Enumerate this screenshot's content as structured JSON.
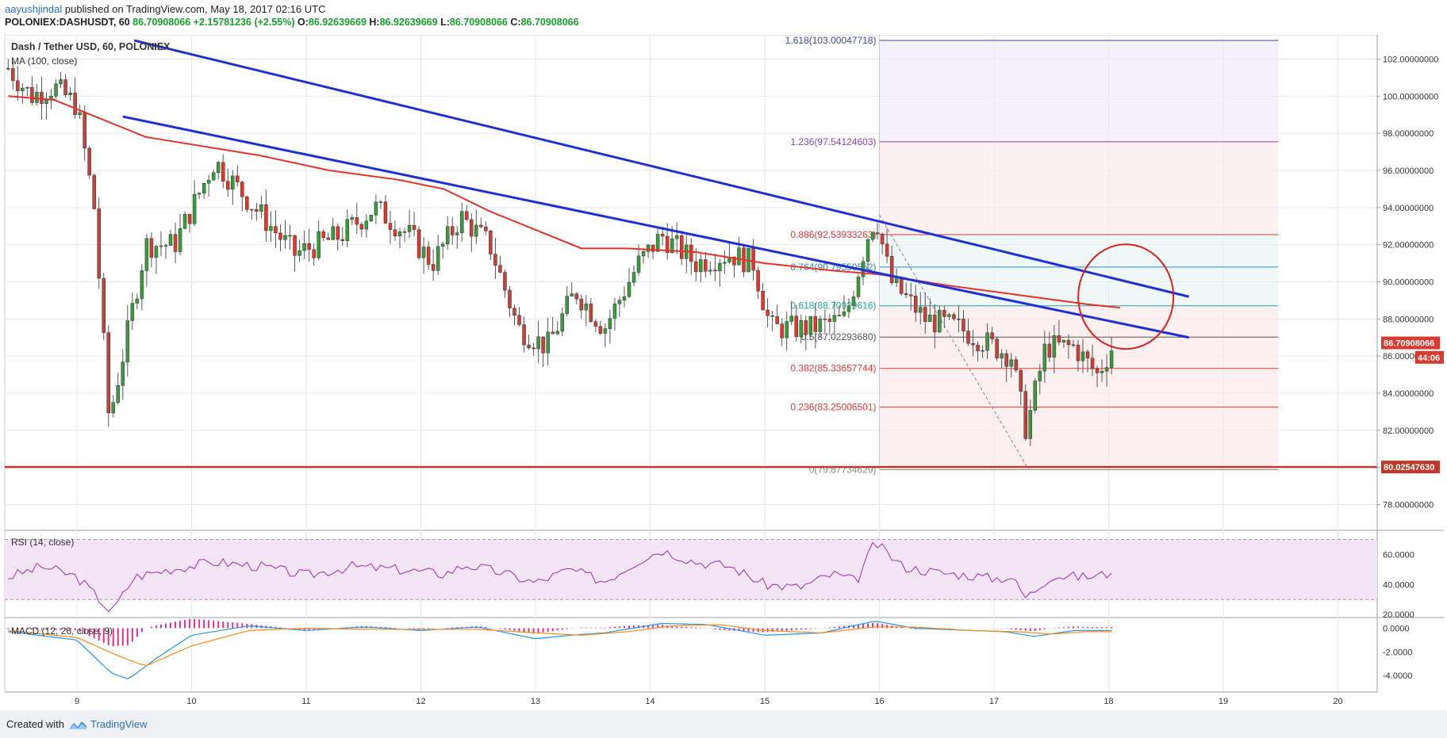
{
  "header": {
    "author": "aayushjindal",
    "published_text": "published on TradingView.com, May 18, 2017 02:16 UTC",
    "symbol": "POLONIEX:DASHUSDT, 60",
    "last": "86.70908066",
    "change": "+2.15781236 (+2.55%)",
    "open_label": "O:",
    "open": "86.92639669",
    "high_label": "H:",
    "high": "86.92639669",
    "low_label": "L:",
    "low": "86.70908066",
    "close_label": "C:",
    "close": "86.70908066"
  },
  "legend": {
    "title": "Dash / Tether USD, 60, POLONIEX",
    "ma": "MA (100, close)"
  },
  "footer": {
    "created": "Created with",
    "brand": "TradingView"
  },
  "colors": {
    "up": "#3a9b3a",
    "down": "#d93a2f",
    "ma": "#e8302a",
    "trend": "#1f2fd6",
    "rsi": "#9b2fb0",
    "macd": "#2196f3",
    "signal": "#ff8a1a",
    "hist": "#e0318a"
  },
  "chart_data": [
    {
      "type": "candlestick",
      "title": "Dash / Tether USD, 60, POLONIEX",
      "x_ticks": [
        "9",
        "10",
        "11",
        "12",
        "13",
        "14",
        "15",
        "16",
        "17",
        "18",
        "19",
        "20"
      ],
      "ylim": [
        76.7,
        103.3
      ],
      "y_ticks": [
        "78.00000000",
        "80.00000000",
        "82.00000000",
        "84.00000000",
        "86.00000000",
        "88.00000000",
        "90.00000000",
        "92.00000000",
        "94.00000000",
        "96.00000000",
        "98.00000000",
        "100.00000000",
        "102.00000000"
      ],
      "y_tick_values": [
        78,
        80,
        82,
        84,
        86,
        88,
        90,
        92,
        94,
        96,
        98,
        100,
        102
      ],
      "price_tags": [
        {
          "label": "86.70908066",
          "value": 86.709
        },
        {
          "label": "44:06",
          "value": 85.93
        },
        {
          "label": "80.02547630",
          "value": 80.025
        }
      ],
      "candle_anchors": [
        {
          "t": 8.4,
          "p": 101.5
        },
        {
          "t": 8.6,
          "p": 100.0
        },
        {
          "t": 8.8,
          "p": 100.5
        },
        {
          "t": 9.0,
          "p": 99.5
        },
        {
          "t": 9.15,
          "p": 94.0
        },
        {
          "t": 9.28,
          "p": 82.5
        },
        {
          "t": 9.4,
          "p": 86.0
        },
        {
          "t": 9.6,
          "p": 92.0
        },
        {
          "t": 9.85,
          "p": 92.0
        },
        {
          "t": 10.2,
          "p": 96.5
        },
        {
          "t": 10.55,
          "p": 94.0
        },
        {
          "t": 10.9,
          "p": 91.5
        },
        {
          "t": 11.3,
          "p": 92.5
        },
        {
          "t": 11.6,
          "p": 94.0
        },
        {
          "t": 11.9,
          "p": 92.5
        },
        {
          "t": 12.1,
          "p": 91.0
        },
        {
          "t": 12.35,
          "p": 93.5
        },
        {
          "t": 12.6,
          "p": 92.0
        },
        {
          "t": 12.85,
          "p": 87.5
        },
        {
          "t": 13.1,
          "p": 86.5
        },
        {
          "t": 13.35,
          "p": 89.5
        },
        {
          "t": 13.6,
          "p": 87.5
        },
        {
          "t": 13.9,
          "p": 91.0
        },
        {
          "t": 14.1,
          "p": 92.5
        },
        {
          "t": 14.4,
          "p": 91.0
        },
        {
          "t": 14.7,
          "p": 91.5
        },
        {
          "t": 14.9,
          "p": 91.0
        },
        {
          "t": 15.05,
          "p": 87.5
        },
        {
          "t": 15.4,
          "p": 87.5
        },
        {
          "t": 15.7,
          "p": 88.0
        },
        {
          "t": 15.9,
          "p": 92.5
        },
        {
          "t": 15.97,
          "p": 93.5
        },
        {
          "t": 16.1,
          "p": 90.0
        },
        {
          "t": 16.4,
          "p": 88.0
        },
        {
          "t": 16.7,
          "p": 87.5
        },
        {
          "t": 17.0,
          "p": 86.5
        },
        {
          "t": 17.15,
          "p": 86.0
        },
        {
          "t": 17.28,
          "p": 82.0
        },
        {
          "t": 17.45,
          "p": 86.5
        },
        {
          "t": 17.7,
          "p": 86.5
        },
        {
          "t": 17.9,
          "p": 85.0
        },
        {
          "t": 18.05,
          "p": 86.7
        }
      ],
      "ma_path": [
        {
          "t": 8.4,
          "p": 100.0
        },
        {
          "t": 8.8,
          "p": 99.8
        },
        {
          "t": 9.2,
          "p": 98.8
        },
        {
          "t": 9.6,
          "p": 97.8
        },
        {
          "t": 10.0,
          "p": 97.4
        },
        {
          "t": 10.6,
          "p": 96.8
        },
        {
          "t": 11.2,
          "p": 96.0
        },
        {
          "t": 11.8,
          "p": 95.5
        },
        {
          "t": 12.2,
          "p": 95.0
        },
        {
          "t": 12.6,
          "p": 93.8
        },
        {
          "t": 13.0,
          "p": 92.8
        },
        {
          "t": 13.4,
          "p": 91.8
        },
        {
          "t": 13.8,
          "p": 91.8
        },
        {
          "t": 14.4,
          "p": 91.6
        },
        {
          "t": 15.0,
          "p": 91.0
        },
        {
          "t": 15.6,
          "p": 90.6
        },
        {
          "t": 16.0,
          "p": 90.4
        },
        {
          "t": 16.6,
          "p": 89.8
        },
        {
          "t": 17.2,
          "p": 89.3
        },
        {
          "t": 17.8,
          "p": 88.8
        },
        {
          "t": 18.1,
          "p": 88.6
        }
      ],
      "trendlines": [
        {
          "t1": 9.5,
          "p1": 103.0,
          "t2": 18.7,
          "p2": 89.2
        },
        {
          "t1": 9.4,
          "p1": 98.9,
          "t2": 18.7,
          "p2": 87.0
        }
      ],
      "fib_levels": [
        {
          "ratio": "0",
          "label": "0(79.87734629)",
          "value": 79.877,
          "color": "#888888"
        },
        {
          "ratio": "0.236",
          "label": "0.236(83.25006501)",
          "value": 83.25,
          "color": "#e53935"
        },
        {
          "ratio": "0.382",
          "label": "0.382(85.33657744)",
          "value": 85.337,
          "color": "#e53935"
        },
        {
          "ratio": "0.5",
          "label": "0.5(87.02293680)",
          "value": 87.023,
          "color": "#555555"
        },
        {
          "ratio": "0.618",
          "label": "0.618(88.70929616)",
          "value": 88.709,
          "color": "#26a69a"
        },
        {
          "ratio": "0.764",
          "label": "0.764(90.79550552)",
          "value": 90.796,
          "color": "#2e86c1"
        },
        {
          "ratio": "0.886",
          "label": "0.886(92.53933263)",
          "value": 92.539,
          "color": "#e53935"
        },
        {
          "ratio": "1.236",
          "label": "1.236(97.54124603)",
          "value": 97.541,
          "color": "#8e44ad"
        },
        {
          "ratio": "1.618",
          "label": "1.618(103.00047718)",
          "value": 103.0,
          "color": "#3949ab"
        }
      ],
      "support_line": 80.025
    },
    {
      "type": "line",
      "title": "RSI (14, close)",
      "ylim": [
        18,
        75
      ],
      "y_ticks": [
        "20.0000",
        "40.0000",
        "60.0000"
      ],
      "y_tick_values": [
        20,
        40,
        60
      ],
      "band": [
        30,
        70
      ],
      "series": [
        {
          "points": [
            {
              "t": 8.4,
              "v": 45
            },
            {
              "t": 8.7,
              "v": 52
            },
            {
              "t": 9.0,
              "v": 45
            },
            {
              "t": 9.2,
              "v": 30
            },
            {
              "t": 9.3,
              "v": 21
            },
            {
              "t": 9.5,
              "v": 45
            },
            {
              "t": 9.8,
              "v": 50
            },
            {
              "t": 10.2,
              "v": 55
            },
            {
              "t": 10.6,
              "v": 52
            },
            {
              "t": 11.0,
              "v": 46
            },
            {
              "t": 11.4,
              "v": 52
            },
            {
              "t": 11.8,
              "v": 50
            },
            {
              "t": 12.2,
              "v": 47
            },
            {
              "t": 12.4,
              "v": 53
            },
            {
              "t": 12.7,
              "v": 48
            },
            {
              "t": 13.0,
              "v": 41
            },
            {
              "t": 13.3,
              "v": 50
            },
            {
              "t": 13.6,
              "v": 42
            },
            {
              "t": 13.9,
              "v": 56
            },
            {
              "t": 14.1,
              "v": 63
            },
            {
              "t": 14.4,
              "v": 55
            },
            {
              "t": 14.7,
              "v": 52
            },
            {
              "t": 15.0,
              "v": 40
            },
            {
              "t": 15.3,
              "v": 38
            },
            {
              "t": 15.6,
              "v": 47
            },
            {
              "t": 15.8,
              "v": 42
            },
            {
              "t": 15.96,
              "v": 68
            },
            {
              "t": 16.2,
              "v": 52
            },
            {
              "t": 16.5,
              "v": 48
            },
            {
              "t": 16.8,
              "v": 46
            },
            {
              "t": 17.0,
              "v": 44
            },
            {
              "t": 17.15,
              "v": 45
            },
            {
              "t": 17.28,
              "v": 31
            },
            {
              "t": 17.5,
              "v": 46
            },
            {
              "t": 17.8,
              "v": 45
            },
            {
              "t": 18.0,
              "v": 47
            },
            {
              "t": 18.05,
              "v": 54
            }
          ]
        }
      ]
    },
    {
      "type": "line",
      "title": "MACD (12, 26, close, 9)",
      "ylim": [
        -5.4,
        0.9
      ],
      "y_ticks": [
        "0.0000",
        "-2.0000",
        "-4.0000"
      ],
      "y_tick_values": [
        0,
        -2,
        -4
      ],
      "series": [
        {
          "role": "macd",
          "points": [
            {
              "t": 8.4,
              "v": -0.3
            },
            {
              "t": 9.0,
              "v": -1.0
            },
            {
              "t": 9.3,
              "v": -3.8
            },
            {
              "t": 9.45,
              "v": -4.3
            },
            {
              "t": 9.7,
              "v": -2.5
            },
            {
              "t": 10.0,
              "v": -0.6
            },
            {
              "t": 10.5,
              "v": 0.2
            },
            {
              "t": 11.0,
              "v": -0.2
            },
            {
              "t": 11.5,
              "v": 0.1
            },
            {
              "t": 12.0,
              "v": -0.2
            },
            {
              "t": 12.5,
              "v": 0.1
            },
            {
              "t": 13.0,
              "v": -0.9
            },
            {
              "t": 13.3,
              "v": -0.6
            },
            {
              "t": 13.6,
              "v": -0.4
            },
            {
              "t": 14.1,
              "v": 0.4
            },
            {
              "t": 14.5,
              "v": 0.3
            },
            {
              "t": 15.0,
              "v": -0.6
            },
            {
              "t": 15.5,
              "v": -0.4
            },
            {
              "t": 15.96,
              "v": 0.6
            },
            {
              "t": 16.3,
              "v": 0.0
            },
            {
              "t": 16.8,
              "v": -0.2
            },
            {
              "t": 17.1,
              "v": -0.3
            },
            {
              "t": 17.35,
              "v": -0.7
            },
            {
              "t": 17.7,
              "v": -0.2
            },
            {
              "t": 18.05,
              "v": -0.2
            }
          ]
        },
        {
          "role": "signal",
          "points": [
            {
              "t": 8.4,
              "v": -0.2
            },
            {
              "t": 9.0,
              "v": -0.8
            },
            {
              "t": 9.4,
              "v": -2.5
            },
            {
              "t": 9.6,
              "v": -3.2
            },
            {
              "t": 10.0,
              "v": -1.5
            },
            {
              "t": 10.5,
              "v": -0.2
            },
            {
              "t": 11.0,
              "v": 0.0
            },
            {
              "t": 11.5,
              "v": -0.1
            },
            {
              "t": 12.0,
              "v": -0.1
            },
            {
              "t": 12.5,
              "v": -0.1
            },
            {
              "t": 13.0,
              "v": -0.4
            },
            {
              "t": 13.4,
              "v": -0.6
            },
            {
              "t": 13.8,
              "v": -0.3
            },
            {
              "t": 14.2,
              "v": 0.2
            },
            {
              "t": 14.6,
              "v": 0.3
            },
            {
              "t": 15.0,
              "v": -0.2
            },
            {
              "t": 15.5,
              "v": -0.4
            },
            {
              "t": 15.96,
              "v": 0.1
            },
            {
              "t": 16.3,
              "v": 0.1
            },
            {
              "t": 16.8,
              "v": -0.2
            },
            {
              "t": 17.2,
              "v": -0.3
            },
            {
              "t": 17.5,
              "v": -0.5
            },
            {
              "t": 17.8,
              "v": -0.3
            },
            {
              "t": 18.05,
              "v": -0.3
            }
          ]
        }
      ]
    }
  ]
}
